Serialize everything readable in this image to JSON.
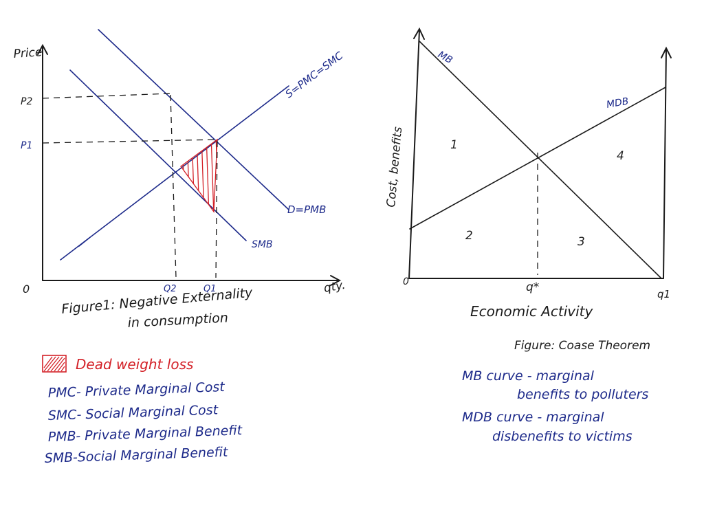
{
  "left": {
    "y_axis": "Price",
    "x_axis": "qty.",
    "origin": "0",
    "p2": "P2",
    "p1": "P1",
    "q2": "Q2",
    "q1": "Q1",
    "supply_label": "S=PMC=SMC",
    "demand_label": "D=PMB",
    "smb_label": "SMB",
    "caption_line1": "Figure1: Negative Externality",
    "caption_line2": "in consumption"
  },
  "right": {
    "y_axis": "Cost, benefits",
    "x_axis": "Economic Activity",
    "origin": "0",
    "mb_label": "MB",
    "mdb_label": "MDB",
    "qstar": "q*",
    "q1": "q1",
    "area1": "1",
    "area2": "2",
    "area3": "3",
    "area4": "4",
    "caption": "Figure: Coase Theorem"
  },
  "legend_left": {
    "dwl": "Dead weight loss",
    "pmc": "PMC- Private Marginal Cost",
    "smc": "SMC- Social Marginal Cost",
    "pmb": "PMB- Private Marginal Benefit",
    "smb": "SMB-Social Marginal Benefit"
  },
  "legend_right": {
    "mb_line1": "MB curve - marginal",
    "mb_line2": "benefits to polluters",
    "mdb_line1": "MDB curve - marginal",
    "mdb_line2": "disbenefits to victims"
  },
  "colors": {
    "ink_blue": "#1d2a8a",
    "dwl_red": "#d31f26",
    "ink_black": "#1a1a1a"
  }
}
